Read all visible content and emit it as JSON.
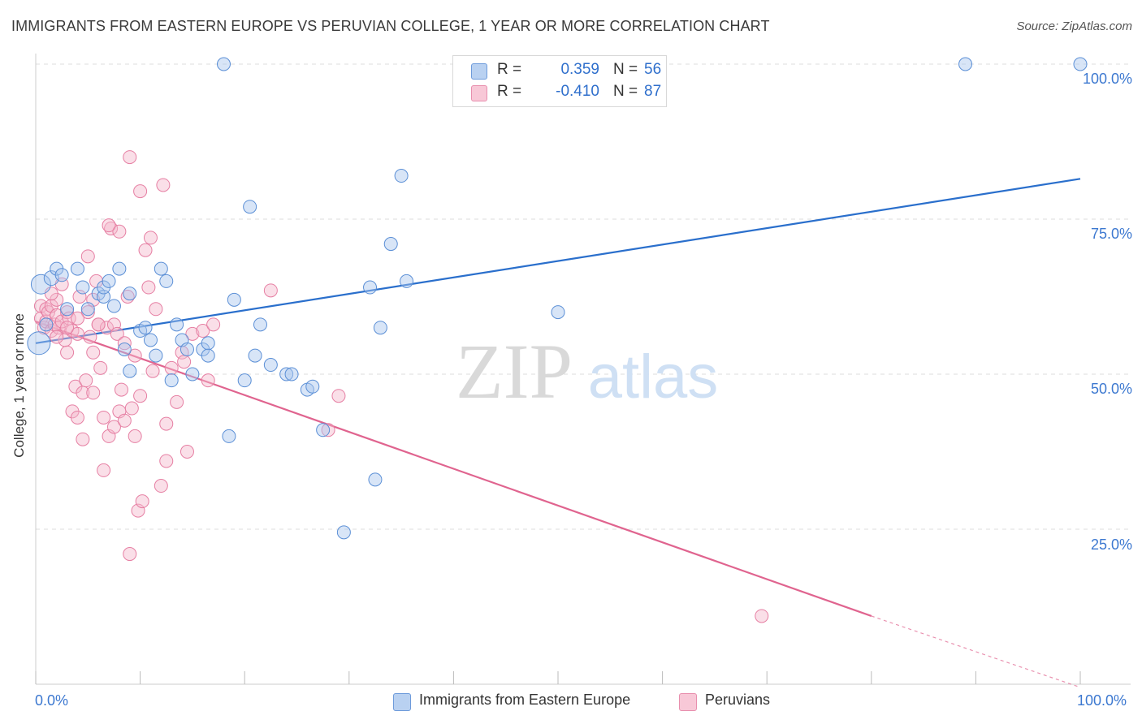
{
  "title": "IMMIGRANTS FROM EASTERN EUROPE VS PERUVIAN COLLEGE, 1 YEAR OR MORE CORRELATION CHART",
  "source": "Source: ZipAtlas.com",
  "watermark": "ZIPatlas",
  "colors": {
    "blue_fill": "#a9c6ee",
    "blue_stroke": "#5b8fd6",
    "blue_line": "#2a6fcc",
    "pink_fill": "#f4b7cb",
    "pink_stroke": "#e67fa3",
    "pink_line": "#e0648f",
    "tick_label": "#3c78d0",
    "grid": "#dddddd"
  },
  "legend": {
    "r_label": "R =",
    "n_label": "N =",
    "items": [
      {
        "r": "0.359",
        "n": "56"
      },
      {
        "r": "-0.410",
        "n": "87"
      }
    ]
  },
  "chart_data": {
    "type": "scatter",
    "title": "IMMIGRANTS FROM EASTERN EUROPE VS PERUVIAN COLLEGE, 1 YEAR OR MORE CORRELATION CHART",
    "xlabel": "",
    "ylabel": "College, 1 year or more",
    "xlim": [
      0,
      100
    ],
    "ylim": [
      0,
      100
    ],
    "x_tick_labels": [
      "0.0%",
      "100.0%"
    ],
    "y_tick_labels": [
      "25.0%",
      "50.0%",
      "75.0%",
      "100.0%"
    ],
    "y_ticks": [
      25,
      50,
      75,
      100
    ],
    "grid": true,
    "legend_position": "bottom",
    "series": [
      {
        "name": "Immigrants from Eastern Europe",
        "color": "#5b8fd6",
        "points": [
          [
            0.3,
            55.0,
            14
          ],
          [
            0.5,
            64.5,
            12
          ],
          [
            1.5,
            65.5,
            9
          ],
          [
            2.0,
            67.0,
            8
          ],
          [
            2.5,
            66.0,
            8
          ],
          [
            3.0,
            60.5,
            8
          ],
          [
            4.0,
            67.0,
            8
          ],
          [
            4.5,
            64.0,
            8
          ],
          [
            5.0,
            60.5,
            8
          ],
          [
            6.0,
            63.0,
            8
          ],
          [
            6.5,
            62.5,
            8
          ],
          [
            6.5,
            64.0,
            8
          ],
          [
            7.0,
            65.0,
            8
          ],
          [
            7.5,
            61.0,
            8
          ],
          [
            8.0,
            67.0,
            8
          ],
          [
            8.5,
            54.0,
            8
          ],
          [
            9.0,
            63.0,
            8
          ],
          [
            9.0,
            50.5,
            8
          ],
          [
            10.0,
            57.0,
            8
          ],
          [
            10.5,
            57.5,
            8
          ],
          [
            11.0,
            55.5,
            8
          ],
          [
            11.5,
            53.0,
            8
          ],
          [
            12.0,
            67.0,
            8
          ],
          [
            12.5,
            65.0,
            8
          ],
          [
            13.0,
            49.0,
            8
          ],
          [
            13.5,
            58.0,
            8
          ],
          [
            14.0,
            55.5,
            8
          ],
          [
            14.5,
            54.0,
            8
          ],
          [
            15.0,
            50.0,
            8
          ],
          [
            16.0,
            54.0,
            8
          ],
          [
            16.5,
            55.0,
            8
          ],
          [
            16.5,
            53.0,
            8
          ],
          [
            18.0,
            100.0,
            8
          ],
          [
            18.5,
            40.0,
            8
          ],
          [
            19.0,
            62.0,
            8
          ],
          [
            20.0,
            49.0,
            8
          ],
          [
            20.5,
            77.0,
            8
          ],
          [
            21.0,
            53.0,
            8
          ],
          [
            21.5,
            58.0,
            8
          ],
          [
            22.5,
            51.5,
            8
          ],
          [
            24.0,
            50.0,
            8
          ],
          [
            24.5,
            50.0,
            8
          ],
          [
            26.0,
            47.5,
            8
          ],
          [
            26.5,
            48.0,
            8
          ],
          [
            27.5,
            41.0,
            8
          ],
          [
            29.5,
            24.5,
            8
          ],
          [
            32.0,
            64.0,
            8
          ],
          [
            32.5,
            33.0,
            8
          ],
          [
            33.0,
            57.5,
            8
          ],
          [
            34.0,
            71.0,
            8
          ],
          [
            35.0,
            82.0,
            8
          ],
          [
            35.5,
            65.0,
            8
          ],
          [
            50.0,
            60.0,
            8
          ],
          [
            89.0,
            100.0,
            8
          ],
          [
            100.0,
            100.0,
            8
          ],
          [
            1.0,
            58.0,
            8
          ]
        ],
        "trend": {
          "x1": 0,
          "y1": 55.0,
          "x2": 100,
          "y2": 81.5
        }
      },
      {
        "name": "Peruvians",
        "color": "#e67fa3",
        "points": [
          [
            0.5,
            61.0,
            8
          ],
          [
            0.5,
            59.0,
            8
          ],
          [
            0.8,
            57.5,
            8
          ],
          [
            1.0,
            60.5,
            8
          ],
          [
            1.0,
            58.5,
            8
          ],
          [
            1.2,
            60.0,
            8
          ],
          [
            1.5,
            61.0,
            8
          ],
          [
            1.5,
            57.0,
            8
          ],
          [
            1.8,
            58.0,
            8
          ],
          [
            2.0,
            59.5,
            8
          ],
          [
            2.0,
            62.0,
            8
          ],
          [
            2.2,
            57.5,
            8
          ],
          [
            2.5,
            58.5,
            8
          ],
          [
            2.5,
            64.5,
            8
          ],
          [
            2.8,
            55.5,
            8
          ],
          [
            3.0,
            53.5,
            8
          ],
          [
            3.0,
            60.0,
            8
          ],
          [
            3.2,
            59.0,
            8
          ],
          [
            3.5,
            57.0,
            8
          ],
          [
            3.5,
            44.0,
            8
          ],
          [
            3.8,
            48.0,
            8
          ],
          [
            4.0,
            56.5,
            8
          ],
          [
            4.0,
            43.0,
            8
          ],
          [
            4.2,
            62.5,
            8
          ],
          [
            4.5,
            39.5,
            8
          ],
          [
            4.5,
            47.0,
            8
          ],
          [
            4.8,
            49.0,
            8
          ],
          [
            5.0,
            69.0,
            8
          ],
          [
            5.0,
            60.0,
            8
          ],
          [
            5.2,
            56.0,
            8
          ],
          [
            5.5,
            53.5,
            8
          ],
          [
            5.5,
            47.0,
            8
          ],
          [
            5.5,
            62.0,
            8
          ],
          [
            5.8,
            65.0,
            8
          ],
          [
            6.0,
            58.0,
            8
          ],
          [
            6.2,
            51.0,
            8
          ],
          [
            6.5,
            34.5,
            8
          ],
          [
            6.5,
            43.0,
            8
          ],
          [
            6.8,
            57.5,
            8
          ],
          [
            7.0,
            40.0,
            8
          ],
          [
            7.2,
            73.5,
            8
          ],
          [
            7.5,
            58.0,
            8
          ],
          [
            7.5,
            41.5,
            8
          ],
          [
            7.8,
            56.5,
            8
          ],
          [
            8.0,
            44.0,
            8
          ],
          [
            8.0,
            73.0,
            8
          ],
          [
            8.2,
            47.5,
            8
          ],
          [
            8.5,
            55.0,
            8
          ],
          [
            8.5,
            42.5,
            8
          ],
          [
            8.8,
            62.5,
            8
          ],
          [
            9.0,
            85.0,
            8
          ],
          [
            9.0,
            21.0,
            8
          ],
          [
            9.2,
            44.5,
            8
          ],
          [
            9.5,
            53.0,
            8
          ],
          [
            9.5,
            40.0,
            8
          ],
          [
            9.8,
            28.0,
            8
          ],
          [
            10.0,
            79.5,
            8
          ],
          [
            10.0,
            46.5,
            8
          ],
          [
            10.2,
            29.5,
            8
          ],
          [
            10.5,
            70.0,
            8
          ],
          [
            10.8,
            64.0,
            8
          ],
          [
            11.0,
            72.0,
            8
          ],
          [
            11.2,
            50.5,
            8
          ],
          [
            11.5,
            60.5,
            8
          ],
          [
            12.0,
            32.0,
            8
          ],
          [
            12.2,
            80.5,
            8
          ],
          [
            12.5,
            42.0,
            8
          ],
          [
            12.5,
            36.0,
            8
          ],
          [
            13.0,
            51.0,
            8
          ],
          [
            13.5,
            45.5,
            8
          ],
          [
            14.0,
            53.5,
            8
          ],
          [
            14.2,
            52.0,
            8
          ],
          [
            14.5,
            37.5,
            8
          ],
          [
            15.0,
            56.5,
            8
          ],
          [
            16.0,
            57.0,
            8
          ],
          [
            16.5,
            49.0,
            8
          ],
          [
            17.0,
            58.0,
            8
          ],
          [
            22.5,
            63.5,
            8
          ],
          [
            28.0,
            41.0,
            8
          ],
          [
            29.0,
            46.5,
            8
          ],
          [
            69.5,
            11.0,
            8
          ],
          [
            7.0,
            74.0,
            8
          ],
          [
            4.0,
            59.0,
            8
          ],
          [
            3.0,
            57.5,
            8
          ],
          [
            2.0,
            56.0,
            8
          ],
          [
            1.5,
            63.0,
            8
          ],
          [
            6.0,
            58.0,
            8
          ]
        ],
        "trend": {
          "x1": 0,
          "y1": 58.5,
          "x2": 80,
          "y2": 11.0,
          "dash_to_x": 100,
          "dash_to_y": -0.5
        }
      }
    ]
  }
}
